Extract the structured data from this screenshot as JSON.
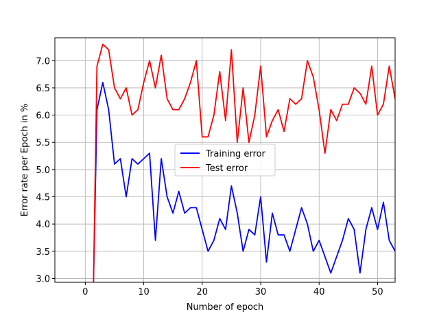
{
  "chart_data": {
    "type": "line",
    "title": "",
    "xlabel": "Number of epoch",
    "ylabel": "Error rate per Epoch in %",
    "xlim": [
      -5.2,
      53
    ],
    "ylim": [
      2.93,
      7.42
    ],
    "xticks": [
      0,
      10,
      20,
      30,
      40,
      50
    ],
    "yticks": [
      3.0,
      3.5,
      4.0,
      4.5,
      5.0,
      5.5,
      6.0,
      6.5,
      7.0
    ],
    "xtick_labels": [
      "0",
      "10",
      "20",
      "30",
      "40",
      "50"
    ],
    "ytick_labels": [
      "3.0",
      "3.5",
      "4.0",
      "4.5",
      "5.0",
      "5.5",
      "6.0",
      "6.5",
      "7.0"
    ],
    "grid": true,
    "legend_position": "center",
    "series": [
      {
        "name": "Training error",
        "color": "#0000ff",
        "x": [
          1.4,
          2,
          3,
          4,
          5,
          6,
          7,
          8,
          9,
          10,
          11,
          12,
          13,
          14,
          15,
          16,
          17,
          18,
          19,
          20,
          21,
          22,
          23,
          24,
          25,
          26,
          27,
          28,
          29,
          30,
          31,
          32,
          33,
          34,
          35,
          36,
          37,
          38,
          39,
          40,
          41,
          42,
          43,
          44,
          45,
          46,
          47,
          48,
          49,
          50,
          51,
          52,
          53
        ],
        "values": [
          2.9,
          6.1,
          6.6,
          6.1,
          5.1,
          5.2,
          4.5,
          5.2,
          5.1,
          5.2,
          5.3,
          3.7,
          5.2,
          4.5,
          4.2,
          4.6,
          4.2,
          4.3,
          4.3,
          3.9,
          3.5,
          3.7,
          4.1,
          3.9,
          4.7,
          4.2,
          3.5,
          3.9,
          3.8,
          4.5,
          3.3,
          4.2,
          3.8,
          3.8,
          3.5,
          3.9,
          4.3,
          4.0,
          3.5,
          3.7,
          3.4,
          3.1,
          3.4,
          3.7,
          4.1,
          3.9,
          3.1,
          3.9,
          4.3,
          3.9,
          4.4,
          3.7,
          3.5
        ]
      },
      {
        "name": "Test error",
        "color": "#ff0000",
        "x": [
          1.4,
          2,
          3,
          4,
          5,
          6,
          7,
          8,
          9,
          10,
          11,
          12,
          13,
          14,
          15,
          16,
          17,
          18,
          19,
          20,
          21,
          22,
          23,
          24,
          25,
          26,
          27,
          28,
          29,
          30,
          31,
          32,
          33,
          34,
          35,
          36,
          37,
          38,
          39,
          40,
          41,
          42,
          43,
          44,
          45,
          46,
          47,
          48,
          49,
          50,
          51,
          52,
          53
        ],
        "values": [
          2.9,
          6.9,
          7.3,
          7.2,
          6.5,
          6.3,
          6.5,
          6.0,
          6.1,
          6.6,
          7.0,
          6.5,
          7.1,
          6.3,
          6.1,
          6.1,
          6.3,
          6.6,
          7.0,
          5.6,
          5.6,
          6.0,
          6.8,
          5.9,
          7.2,
          5.5,
          6.5,
          5.5,
          6.0,
          6.9,
          5.6,
          5.9,
          6.1,
          5.7,
          6.3,
          6.2,
          6.3,
          7.0,
          6.7,
          6.1,
          5.3,
          6.1,
          5.9,
          6.2,
          6.2,
          6.5,
          6.4,
          6.2,
          6.9,
          6.0,
          6.2,
          6.9,
          6.3
        ]
      }
    ]
  }
}
